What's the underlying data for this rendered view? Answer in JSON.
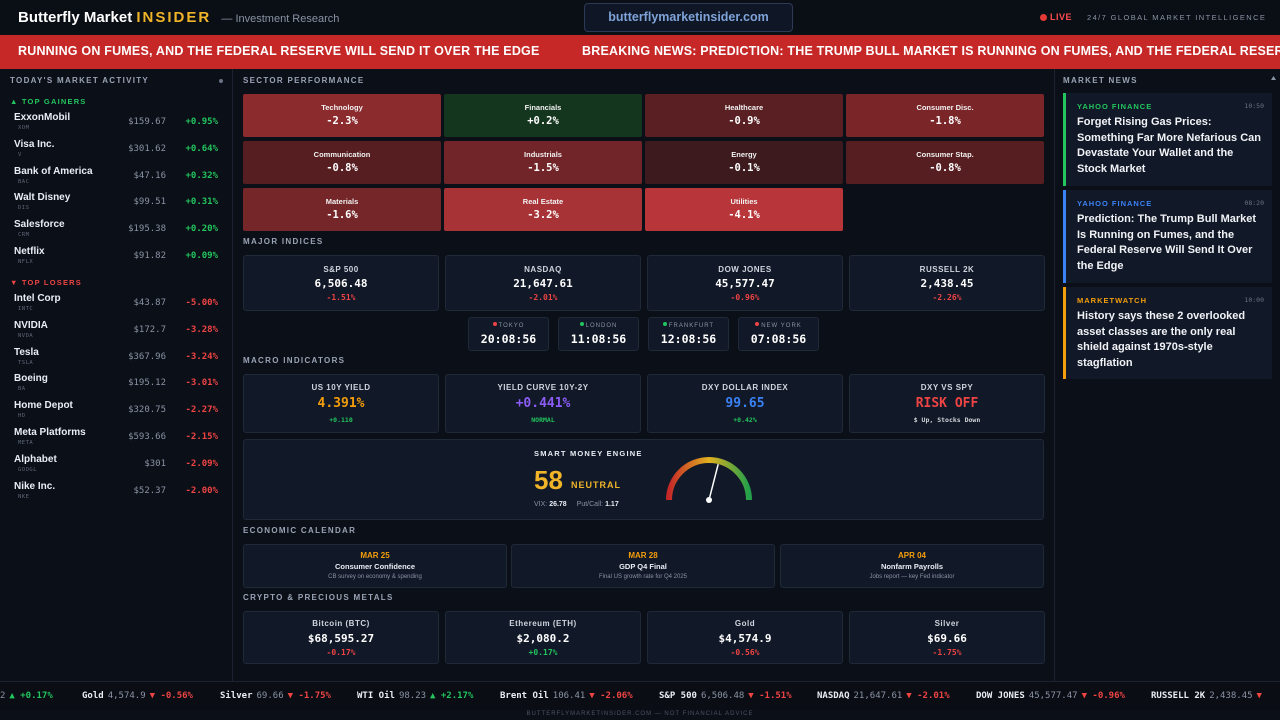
{
  "header": {
    "brand_main": "Butterfly Market",
    "brand_accent": "INSIDER",
    "brand_sub": "— Investment Research",
    "url": "butterflymarketinsider.com",
    "live_label": "LIVE",
    "tagline": "24/7 GLOBAL MARKET INTELLIGENCE"
  },
  "breaking": {
    "text_left": "RUNNING ON FUMES, AND THE FEDERAL RESERVE WILL SEND IT OVER THE EDGE",
    "text_right": "BREAKING NEWS: PREDICTION: THE TRUMP BULL MARKET IS RUNNING ON FUMES, AND THE FEDERAL RESERVE WIL"
  },
  "market_activity": {
    "title": "TODAY'S MARKET ACTIVITY",
    "gainers_label": "▲ TOP GAINERS",
    "losers_label": "▼ TOP LOSERS",
    "gainers": [
      {
        "name": "ExxonMobil",
        "ticker": "XOM",
        "price": "$159.67",
        "change": "+0.95%"
      },
      {
        "name": "Visa Inc.",
        "ticker": "V",
        "price": "$301.62",
        "change": "+0.64%"
      },
      {
        "name": "Bank of America",
        "ticker": "BAC",
        "price": "$47.16",
        "change": "+0.32%"
      },
      {
        "name": "Walt Disney",
        "ticker": "DIS",
        "price": "$99.51",
        "change": "+0.31%"
      },
      {
        "name": "Salesforce",
        "ticker": "CRM",
        "price": "$195.38",
        "change": "+0.20%"
      },
      {
        "name": "Netflix",
        "ticker": "NFLX",
        "price": "$91.82",
        "change": "+0.09%"
      }
    ],
    "losers": [
      {
        "name": "Intel Corp",
        "ticker": "INTC",
        "price": "$43.87",
        "change": "-5.00%"
      },
      {
        "name": "NVIDIA",
        "ticker": "NVDA",
        "price": "$172.7",
        "change": "-3.28%"
      },
      {
        "name": "Tesla",
        "ticker": "TSLA",
        "price": "$367.96",
        "change": "-3.24%"
      },
      {
        "name": "Boeing",
        "ticker": "BA",
        "price": "$195.12",
        "change": "-3.01%"
      },
      {
        "name": "Home Depot",
        "ticker": "HD",
        "price": "$320.75",
        "change": "-2.27%"
      },
      {
        "name": "Meta Platforms",
        "ticker": "META",
        "price": "$593.66",
        "change": "-2.15%"
      },
      {
        "name": "Alphabet",
        "ticker": "GOOGL",
        "price": "$301",
        "change": "-2.09%"
      },
      {
        "name": "Nike Inc.",
        "ticker": "NKE",
        "price": "$52.37",
        "change": "-2.00%"
      }
    ]
  },
  "sectors": {
    "title": "SECTOR PERFORMANCE",
    "items": [
      {
        "name": "Technology",
        "value": "-2.3%",
        "color": "#8b2b2e"
      },
      {
        "name": "Financials",
        "value": "+0.2%",
        "color": "#14361f"
      },
      {
        "name": "Healthcare",
        "value": "-0.9%",
        "color": "#5a1f22"
      },
      {
        "name": "Consumer Disc.",
        "value": "-1.8%",
        "color": "#7a2629"
      },
      {
        "name": "Communication",
        "value": "-0.8%",
        "color": "#561e21"
      },
      {
        "name": "Industrials",
        "value": "-1.5%",
        "color": "#722528"
      },
      {
        "name": "Energy",
        "value": "-0.1%",
        "color": "#3c1a1d"
      },
      {
        "name": "Consumer Stap.",
        "value": "-0.8%",
        "color": "#561e21"
      },
      {
        "name": "Materials",
        "value": "-1.6%",
        "color": "#742629"
      },
      {
        "name": "Real Estate",
        "value": "-3.2%",
        "color": "#a83337"
      },
      {
        "name": "Utilities",
        "value": "-4.1%",
        "color": "#b83639"
      }
    ]
  },
  "indices": {
    "title": "MAJOR INDICES",
    "items": [
      {
        "name": "S&P 500",
        "value": "6,506.48",
        "change": "-1.51%"
      },
      {
        "name": "NASDAQ",
        "value": "21,647.61",
        "change": "-2.01%"
      },
      {
        "name": "DOW JONES",
        "value": "45,577.47",
        "change": "-0.96%"
      },
      {
        "name": "RUSSELL 2K",
        "value": "2,438.45",
        "change": "-2.26%"
      }
    ]
  },
  "clocks": [
    {
      "city": "TOKYO",
      "time": "20:08:56",
      "color": "#ef4444"
    },
    {
      "city": "LONDON",
      "time": "11:08:56",
      "color": "#22c55e"
    },
    {
      "city": "FRANKFURT",
      "time": "12:08:56",
      "color": "#22c55e"
    },
    {
      "city": "NEW YORK",
      "time": "07:08:56",
      "color": "#ef4444"
    }
  ],
  "macro": {
    "title": "MACRO INDICATORS",
    "items": [
      {
        "name": "US 10Y YIELD",
        "value": "4.391%",
        "sub": "+0.110",
        "value_color": "#f59e0b",
        "sub_color": "#22c55e"
      },
      {
        "name": "YIELD CURVE 10Y-2Y",
        "value": "+0.441%",
        "sub": "NORMAL",
        "value_color": "#8b5cf6",
        "sub_color": "#22c55e"
      },
      {
        "name": "DXY DOLLAR INDEX",
        "value": "99.65",
        "sub": "+0.42%",
        "value_color": "#3b82f6",
        "sub_color": "#22c55e"
      },
      {
        "name": "DXY VS SPY",
        "value": "RISK OFF",
        "sub": "$ Up, Stocks Down",
        "value_color": "#ef4444",
        "sub_color": "#d1d5db"
      }
    ]
  },
  "engine": {
    "title": "SMART MONEY ENGINE",
    "score": "58",
    "state": "NEUTRAL",
    "vix_label": "VIX:",
    "vix_value": "26.78",
    "pc_label": "Put/Call:",
    "pc_value": "1.17",
    "gauge_level": 58
  },
  "calendar": {
    "title": "ECONOMIC CALENDAR",
    "items": [
      {
        "date": "MAR 25",
        "title": "Consumer Confidence",
        "sub": "CB survey on economy & spending"
      },
      {
        "date": "MAR 28",
        "title": "GDP Q4 Final",
        "sub": "Final US growth rate for Q4 2025"
      },
      {
        "date": "APR 04",
        "title": "Nonfarm Payrolls",
        "sub": "Jobs report — key Fed indicator"
      }
    ]
  },
  "crypto": {
    "title": "CRYPTO & PRECIOUS METALS",
    "items": [
      {
        "name": "Bitcoin (BTC)",
        "value": "$68,595.27",
        "change": "-0.17%"
      },
      {
        "name": "Ethereum (ETH)",
        "value": "$2,080.2",
        "change": "+0.17%"
      },
      {
        "name": "Gold",
        "value": "$4,574.9",
        "change": "-0.56%"
      },
      {
        "name": "Silver",
        "value": "$69.66",
        "change": "-1.75%"
      }
    ]
  },
  "news": {
    "title": "MARKET NEWS",
    "items": [
      {
        "source": "YAHOO FINANCE",
        "time": "10:50",
        "headline": "Forget Rising Gas Prices: Something Far More Nefarious Can Devastate Your Wallet and the Stock Market",
        "color": "#22c55e"
      },
      {
        "source": "YAHOO FINANCE",
        "time": "08:20",
        "headline": "Prediction: The Trump Bull Market Is Running on Fumes, and the Federal Reserve Will Send It Over the Edge",
        "color": "#3b82f6"
      },
      {
        "source": "MARKETWATCH",
        "time": "10:00",
        "headline": "History says these 2 overlooked asset classes are the only real shield against 1970s-style stagflation",
        "color": "#f59e0b"
      }
    ]
  },
  "ticker": [
    {
      "name": "",
      "price": "2",
      "change": "▲ +0.17%"
    },
    {
      "name": "Gold",
      "price": "4,574.9",
      "change": "▼ -0.56%"
    },
    {
      "name": "Silver",
      "price": "69.66",
      "change": "▼ -1.75%"
    },
    {
      "name": "WTI Oil",
      "price": "98.23",
      "change": "▲ +2.17%"
    },
    {
      "name": "Brent Oil",
      "price": "106.41",
      "change": "▼ -2.06%"
    },
    {
      "name": "S&P 500",
      "price": "6,506.48",
      "change": "▼ -1.51%"
    },
    {
      "name": "NASDAQ",
      "price": "21,647.61",
      "change": "▼ -2.01%"
    },
    {
      "name": "DOW JONES",
      "price": "45,577.47",
      "change": "▼ -0.96%"
    },
    {
      "name": "RUSSELL 2K",
      "price": "2,438.45",
      "change": "▼"
    }
  ],
  "footer": "BUTTERFLYMARKETINSIDER.COM — NOT FINANCIAL ADVICE"
}
